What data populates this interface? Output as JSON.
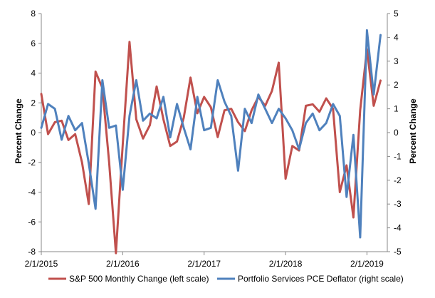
{
  "chart_data": {
    "type": "line",
    "title": "",
    "xlabel": "",
    "x_tick_labels": [
      "2/1/2015",
      "2/1/2016",
      "2/1/2017",
      "2/1/2018",
      "2/1/2019"
    ],
    "x_tick_months": [
      0,
      12,
      24,
      36,
      48
    ],
    "x_range": [
      0,
      51
    ],
    "y_left": {
      "label": "Percent Change",
      "ylim": [
        -8,
        8
      ],
      "ticks": [
        -8,
        -6,
        -4,
        -2,
        0,
        2,
        4,
        6,
        8
      ]
    },
    "y_right": {
      "label": "Percent Change",
      "ylim": [
        -5,
        5
      ],
      "ticks": [
        -5,
        -4,
        -3,
        -2,
        -1,
        0,
        1,
        2,
        3,
        4,
        5
      ]
    },
    "grid": false,
    "legend_position": "bottom",
    "series": [
      {
        "name": "S&P 500 Monthly Change (left scale)",
        "axis": "left",
        "color": "#c0504d",
        "values": [
          2.6,
          -0.1,
          0.7,
          0.8,
          -0.5,
          -0.1,
          -2.0,
          -4.8,
          4.1,
          3.0,
          -2.0,
          -8.1,
          -0.8,
          6.1,
          0.9,
          -0.4,
          0.5,
          3.1,
          0.9,
          -0.9,
          -0.6,
          1.0,
          3.7,
          1.3,
          2.4,
          1.7,
          -0.3,
          1.5,
          1.6,
          0.7,
          0.1,
          1.5,
          2.4,
          1.8,
          2.8,
          4.7,
          -3.1,
          -0.9,
          -1.2,
          1.8,
          1.9,
          1.4,
          2.3,
          1.6,
          -4.0,
          -2.2,
          -5.7,
          1.5,
          5.6,
          1.8,
          3.5
        ]
      },
      {
        "name": "Portfolio Services PCE Deflator (right scale)",
        "axis": "right",
        "color": "#4f81bd",
        "values": [
          0.2,
          1.2,
          1.0,
          -0.3,
          0.7,
          0.1,
          0.4,
          -1.3,
          -3.2,
          2.2,
          0.2,
          0.3,
          -2.4,
          0.7,
          2.2,
          0.5,
          0.8,
          0.6,
          1.5,
          -0.2,
          1.2,
          0.2,
          -0.7,
          1.5,
          0.1,
          0.2,
          2.2,
          1.3,
          0.7,
          -1.6,
          1.0,
          0.4,
          1.6,
          1.0,
          0.4,
          1.0,
          0.6,
          0.1,
          -0.7,
          0.4,
          0.8,
          0.1,
          0.4,
          1.2,
          0.7,
          -2.7,
          -0.1,
          -4.4,
          4.3,
          1.6,
          4.1
        ]
      }
    ]
  }
}
